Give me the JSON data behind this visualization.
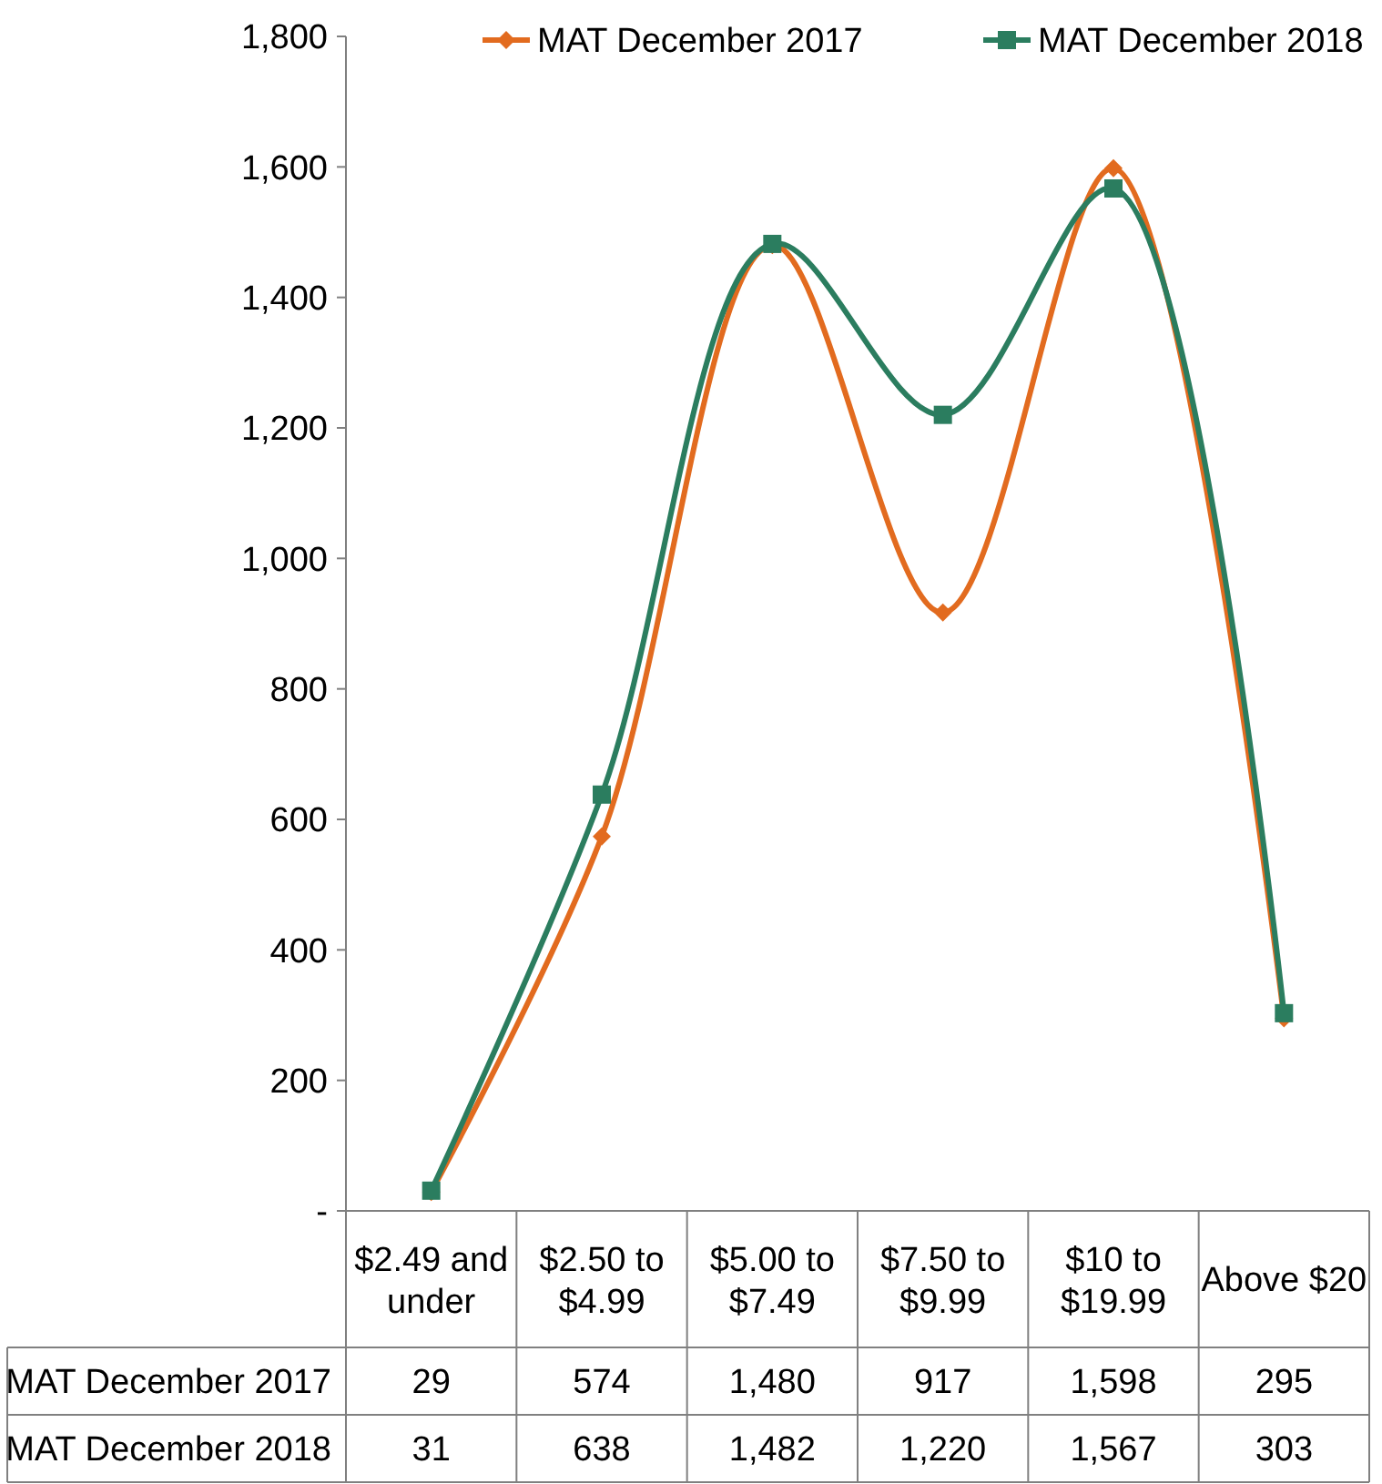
{
  "chart_data": {
    "type": "line",
    "categories": [
      "$2.49 and under",
      "$2.50 to $4.99",
      "$5.00 to $7.49",
      "$7.50 to $9.99",
      "$10 to $19.99",
      "Above $20"
    ],
    "series": [
      {
        "name": "MAT December 2017",
        "color": "#e26b1f",
        "marker": "diamond",
        "values": [
          29,
          574,
          1480,
          917,
          1598,
          295
        ],
        "value_labels": [
          "29",
          "574",
          "1,480",
          "917",
          "1,598",
          "295"
        ]
      },
      {
        "name": "MAT December 2018",
        "color": "#2b7d5f",
        "marker": "square",
        "values": [
          31,
          638,
          1482,
          1220,
          1567,
          303
        ],
        "value_labels": [
          "31",
          "638",
          "1,482",
          "1,220",
          "1,567",
          "303"
        ]
      }
    ],
    "ylim": [
      0,
      1800
    ],
    "yticks": [
      {
        "value": 0,
        "label": "-"
      },
      {
        "value": 200,
        "label": "200"
      },
      {
        "value": 400,
        "label": "400"
      },
      {
        "value": 600,
        "label": "600"
      },
      {
        "value": 800,
        "label": "800"
      },
      {
        "value": 1000,
        "label": "1,000"
      },
      {
        "value": 1200,
        "label": "1,200"
      },
      {
        "value": 1400,
        "label": "1,400"
      },
      {
        "value": 1600,
        "label": "1,600"
      },
      {
        "value": 1800,
        "label": "1,800"
      }
    ],
    "legend": "top"
  }
}
